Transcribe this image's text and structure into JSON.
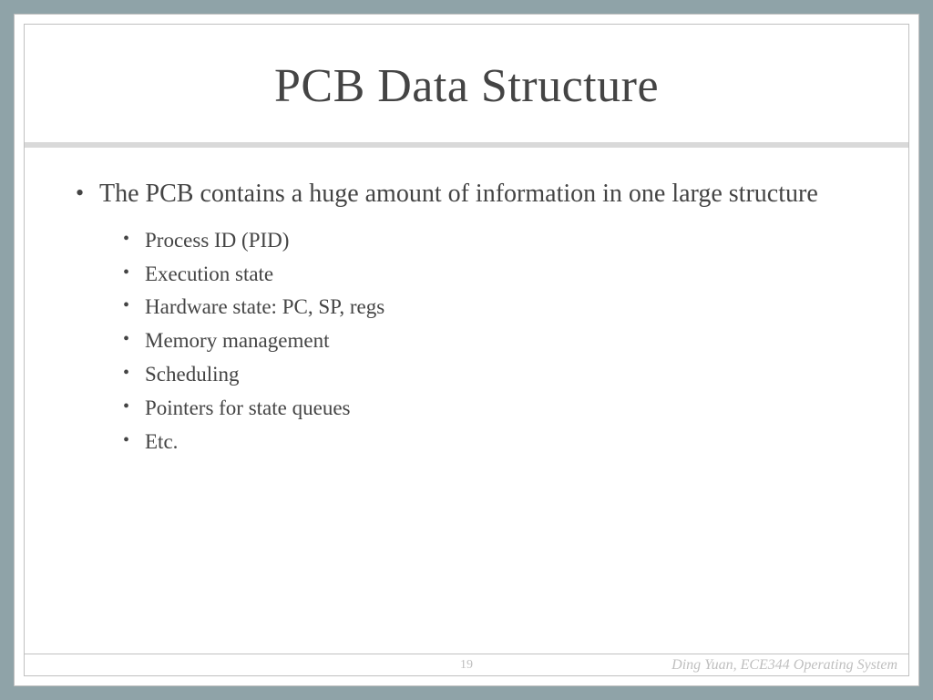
{
  "slide": {
    "title": "PCB Data Structure",
    "title_fontsize": 52,
    "title_color": "#444444",
    "background_color": "#ffffff",
    "frame_color": "#8fa3a8",
    "border_color": "#c0c0c0",
    "divider_color": "#d9d9d9",
    "text_color": "#444444",
    "font_family": "Garamond",
    "bullets": {
      "lvl1": [
        "The PCB contains a huge amount of information in one large structure"
      ],
      "lvl1_fontsize": 28,
      "lvl2": [
        "Process ID (PID)",
        "Execution state",
        "Hardware state: PC, SP, regs",
        "Memory management",
        "Scheduling",
        "Pointers for state queues",
        "Etc."
      ],
      "lvl2_fontsize": 23
    },
    "footer": {
      "page_number": "19",
      "credit": "Ding Yuan, ECE344 Operating System",
      "footer_color": "#bfbfbf",
      "footer_fontsize": 14
    }
  }
}
